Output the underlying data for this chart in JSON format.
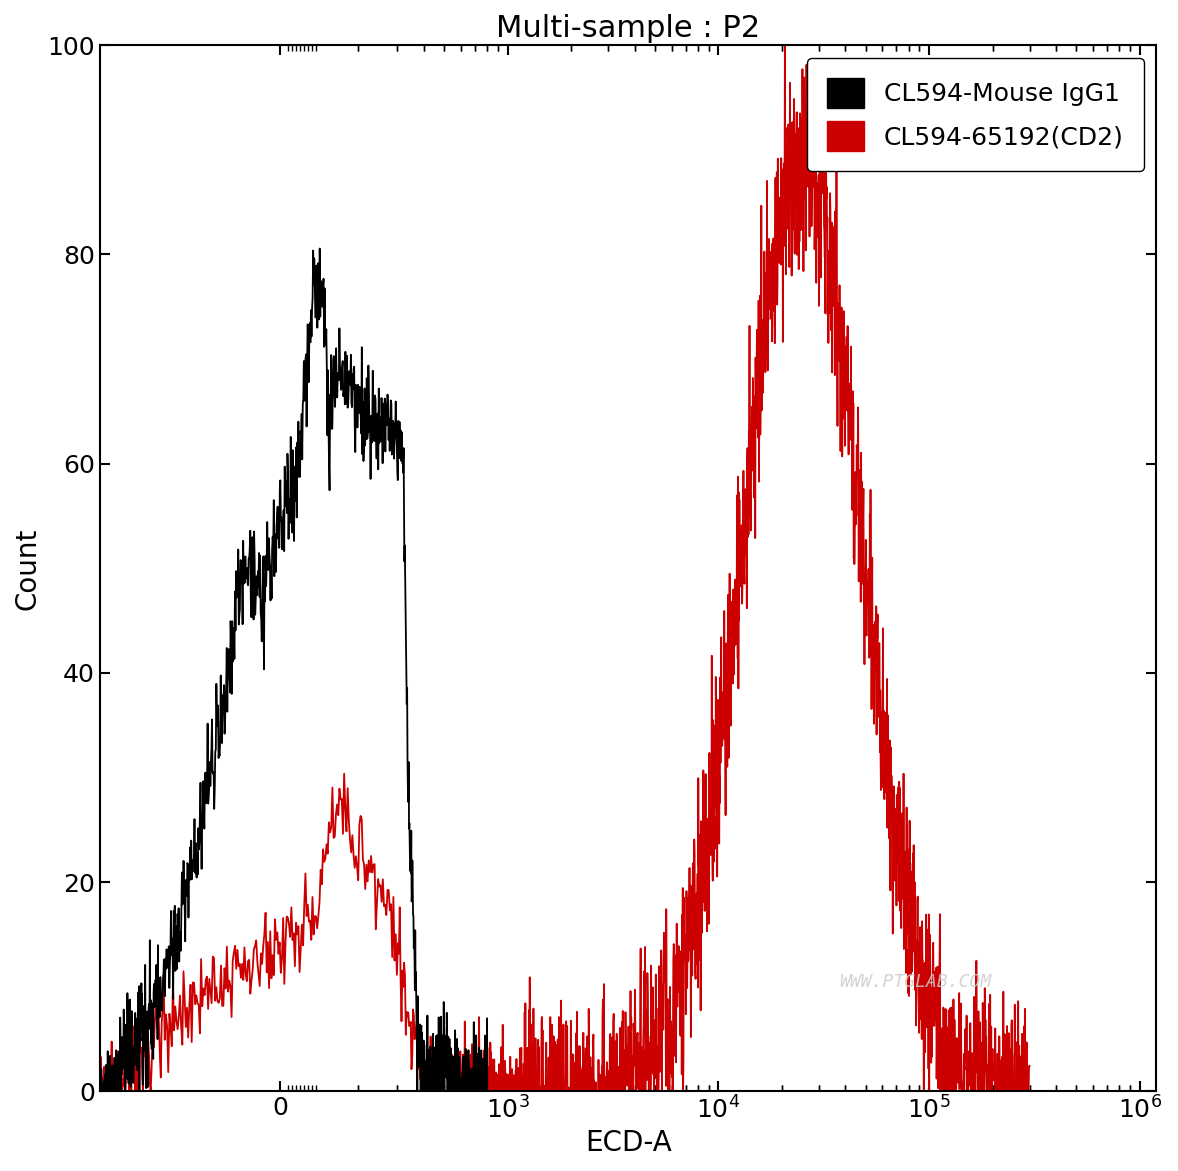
{
  "title": "Multi-sample : P2",
  "xlabel": "ECD-A",
  "ylabel": "Count",
  "ylim": [
    0,
    100
  ],
  "yticks": [
    0,
    20,
    40,
    60,
    80,
    100
  ],
  "legend_labels": [
    "CL594-Mouse IgG1",
    "CL594-65192(CD2)"
  ],
  "legend_colors": [
    "#000000",
    "#cc0000"
  ],
  "watermark": "WWW.PTGLAB.COM",
  "background_color": "#ffffff",
  "title_fontsize": 22,
  "axis_fontsize": 20,
  "tick_fontsize": 18,
  "legend_fontsize": 18,
  "symlog_linthresh": 300,
  "symlog_linscale": 0.5
}
